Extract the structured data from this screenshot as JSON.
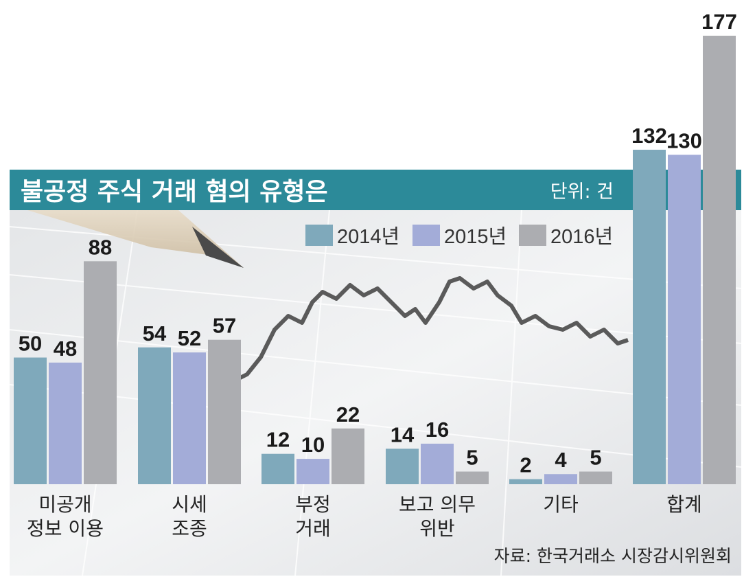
{
  "chart_data": {
    "type": "bar",
    "title": "불공정 주식 거래 혐의 유형은",
    "unit_label": "단위: 건",
    "source": "자료: 한국거래소 시장감시위원회",
    "categories": [
      [
        "미공개",
        "정보 이용"
      ],
      [
        "시세",
        "조종"
      ],
      [
        "부정",
        "거래"
      ],
      [
        "보고 의무",
        "위반"
      ],
      [
        "기타"
      ],
      [
        "합계"
      ]
    ],
    "series": [
      {
        "name": "2014년",
        "color": "#7fa9bb",
        "values": [
          50,
          54,
          12,
          14,
          2,
          132
        ]
      },
      {
        "name": "2015년",
        "color": "#a3acd8",
        "values": [
          48,
          52,
          10,
          16,
          4,
          130
        ]
      },
      {
        "name": "2016년",
        "color": "#acadb1",
        "values": [
          88,
          57,
          22,
          5,
          5,
          177
        ]
      }
    ],
    "ylim": [
      0,
      177
    ],
    "grid": false,
    "legend_position": "top-right"
  }
}
